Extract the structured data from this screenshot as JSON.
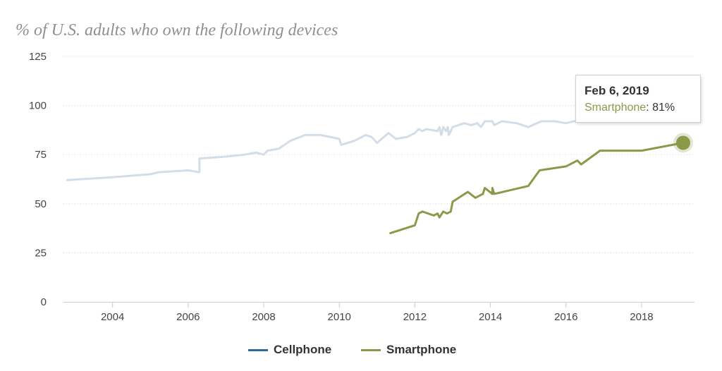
{
  "chart_data": {
    "type": "line",
    "title": "% of U.S. adults who own the following devices",
    "xlabel": "",
    "ylabel": "",
    "xlim": [
      2002.7,
      2019.4
    ],
    "ylim": [
      0,
      125
    ],
    "yticks": [
      0,
      25,
      50,
      75,
      100,
      125
    ],
    "xticks": [
      2004,
      2006,
      2008,
      2010,
      2012,
      2014,
      2016,
      2018
    ],
    "grid": "horizontal-dotted",
    "legend_position": "bottom",
    "series": [
      {
        "name": "Cellphone",
        "color": "#d3dde8",
        "legend_color": "#2f6b9a",
        "points": [
          [
            2002.8,
            62
          ],
          [
            2004.0,
            63.5
          ],
          [
            2005.0,
            65
          ],
          [
            2005.2,
            66
          ],
          [
            2006.0,
            67
          ],
          [
            2006.3,
            66
          ],
          [
            2006.3,
            73
          ],
          [
            2007.0,
            74
          ],
          [
            2007.5,
            75
          ],
          [
            2007.8,
            76
          ],
          [
            2008.0,
            75
          ],
          [
            2008.1,
            77
          ],
          [
            2008.4,
            78
          ],
          [
            2008.7,
            82
          ],
          [
            2009.1,
            85
          ],
          [
            2009.5,
            85
          ],
          [
            2010.0,
            83
          ],
          [
            2010.05,
            80
          ],
          [
            2010.4,
            82
          ],
          [
            2010.7,
            85
          ],
          [
            2010.85,
            84
          ],
          [
            2011.0,
            81
          ],
          [
            2011.3,
            86
          ],
          [
            2011.5,
            83
          ],
          [
            2011.8,
            84
          ],
          [
            2012.0,
            86
          ],
          [
            2012.1,
            88
          ],
          [
            2012.2,
            87
          ],
          [
            2012.3,
            88
          ],
          [
            2012.6,
            87
          ],
          [
            2012.65,
            89
          ],
          [
            2012.7,
            85
          ],
          [
            2012.75,
            89
          ],
          [
            2012.82,
            87
          ],
          [
            2012.87,
            89
          ],
          [
            2012.9,
            85
          ],
          [
            2013.0,
            89
          ],
          [
            2013.3,
            91
          ],
          [
            2013.5,
            90
          ],
          [
            2013.65,
            91
          ],
          [
            2013.75,
            89
          ],
          [
            2013.85,
            92
          ],
          [
            2014.05,
            92
          ],
          [
            2014.1,
            90
          ],
          [
            2014.3,
            92
          ],
          [
            2014.7,
            91
          ],
          [
            2015.0,
            89
          ],
          [
            2015.35,
            92
          ],
          [
            2015.7,
            92
          ],
          [
            2016.0,
            91
          ],
          [
            2016.2,
            92
          ],
          [
            2016.4,
            92
          ]
        ]
      },
      {
        "name": "Smartphone",
        "color": "#8a9a4a",
        "legend_color": "#8a9a4a",
        "points": [
          [
            2011.35,
            35
          ],
          [
            2012.0,
            39
          ],
          [
            2012.1,
            45
          ],
          [
            2012.2,
            46
          ],
          [
            2012.5,
            44
          ],
          [
            2012.6,
            45
          ],
          [
            2012.65,
            43
          ],
          [
            2012.75,
            46
          ],
          [
            2012.85,
            45
          ],
          [
            2012.95,
            46
          ],
          [
            2013.0,
            51
          ],
          [
            2013.4,
            56
          ],
          [
            2013.6,
            53
          ],
          [
            2013.8,
            55
          ],
          [
            2013.85,
            58
          ],
          [
            2014.05,
            55
          ],
          [
            2014.05,
            58
          ],
          [
            2014.1,
            55
          ],
          [
            2015.0,
            59
          ],
          [
            2015.3,
            67
          ],
          [
            2016.0,
            69
          ],
          [
            2016.3,
            72
          ],
          [
            2016.4,
            70
          ],
          [
            2016.9,
            77
          ],
          [
            2018.0,
            77
          ],
          [
            2019.1,
            81
          ]
        ]
      }
    ],
    "highlight": {
      "series": "Smartphone",
      "x": 2019.1,
      "y": 81
    }
  },
  "tooltip": {
    "date": "Feb 6, 2019",
    "series": "Smartphone",
    "value": "81%"
  },
  "legend": {
    "items": [
      {
        "label": "Cellphone",
        "color": "#2f6b9a"
      },
      {
        "label": "Smartphone",
        "color": "#8a9a4a"
      }
    ]
  }
}
